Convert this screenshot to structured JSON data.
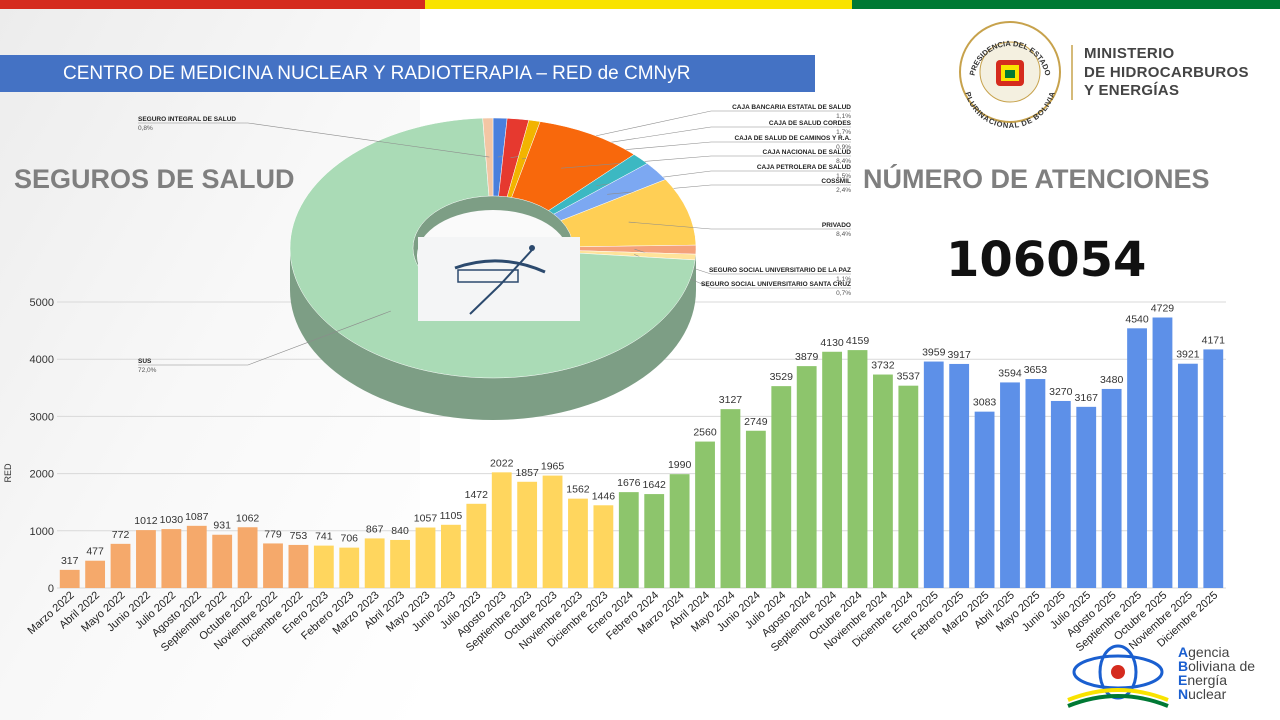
{
  "header": {
    "banner": "CENTRO DE MEDICINA NUCLEAR Y RADIOTERAPIA – RED de CMNyR",
    "left_heading": "SEGUROS  DE  SALUD",
    "right_heading": "NÚMERO DE ATENCIONES",
    "total": 106054
  },
  "logos": {
    "seal_top": "PRESIDENCIA DEL ESTADO",
    "seal_bottom": "PLURINACIONAL DE BOLIVIA",
    "ministry": [
      "MINISTERIO",
      "DE HIDROCARBUROS",
      "Y ENERGÍAS"
    ],
    "agency": [
      "Agencia",
      "Boliviana de",
      "Energía",
      "Nuclear"
    ]
  },
  "chart_data": [
    {
      "type": "bar",
      "y_label": "RED",
      "categories": [
        "Marzo 2022",
        "Abril 2022",
        "Mayo 2022",
        "Junio 2022",
        "Julio 2022",
        "Agosto 2022",
        "Septiembre 2022",
        "Octubre 2022",
        "Noviembre 2022",
        "Diciembre 2022",
        "Enero 2023",
        "Febrero 2023",
        "Marzo 2023",
        "Abril 2023",
        "Mayo 2023",
        "Junio 2023",
        "Julio 2023",
        "Agosto 2023",
        "Septiembre 2023",
        "Octubre 2023",
        "Noviembre 2023",
        "Diciembre 2023",
        "Enero 2024",
        "Febrero 2024",
        "Marzo 2024",
        "Abril 2024",
        "Mayo 2024",
        "Junio 2024",
        "Julio 2024",
        "Agosto 2024",
        "Septiembre 2024",
        "Octubre 2024",
        "Noviembre 2024",
        "Diciembre 2024",
        "Enero 2025",
        "Febrero 2025",
        "Marzo 2025",
        "Abril 2025",
        "Mayo 2025",
        "Junio 2025",
        "Julio 2025",
        "Agosto 2025",
        "Septiembre 2025",
        "Octubre 2025",
        "Noviembre 2025",
        "Diciembre 2025"
      ],
      "values": [
        317,
        477,
        772,
        1012,
        1030,
        1087,
        931,
        1062,
        779,
        753,
        741,
        706,
        867,
        840,
        1057,
        1105,
        1472,
        2022,
        1857,
        1965,
        1562,
        1446,
        1676,
        1642,
        1990,
        2560,
        3127,
        2749,
        3529,
        3879,
        4130,
        4159,
        3732,
        3537,
        3959,
        3917,
        3083,
        3594,
        3653,
        3270,
        3167,
        3480,
        4540,
        4729,
        3921,
        4171
      ],
      "colors": [
        "#f5a96b",
        "#f5a96b",
        "#f5a96b",
        "#f5a96b",
        "#f5a96b",
        "#f5a96b",
        "#f5a96b",
        "#f5a96b",
        "#f5a96b",
        "#f5a96b",
        "#ffd65e",
        "#ffd65e",
        "#ffd65e",
        "#ffd65e",
        "#ffd65e",
        "#ffd65e",
        "#ffd65e",
        "#ffd65e",
        "#ffd65e",
        "#ffd65e",
        "#ffd65e",
        "#ffd65e",
        "#8dc56c",
        "#8dc56c",
        "#8dc56c",
        "#8dc56c",
        "#8dc56c",
        "#8dc56c",
        "#8dc56c",
        "#8dc56c",
        "#8dc56c",
        "#8dc56c",
        "#8dc56c",
        "#8dc56c",
        "#5d90e8",
        "#5d90e8",
        "#5d90e8",
        "#5d90e8",
        "#5d90e8",
        "#5d90e8",
        "#5d90e8",
        "#5d90e8",
        "#5d90e8",
        "#5d90e8",
        "#5d90e8",
        "#5d90e8"
      ],
      "ylim": [
        0,
        5000
      ],
      "yticks": [
        0,
        1000,
        2000,
        3000,
        4000,
        5000
      ],
      "grid": true
    },
    {
      "type": "donut",
      "categories": [
        "CAJA BANCARIA ESTATAL DE SALUD",
        "CAJA DE SALUD CORDES",
        "CAJA DE SALUD DE CAMINOS Y R.A.",
        "CAJA NACIONAL DE SALUD",
        "CAJA PETROLERA DE SALUD",
        "COSSMIL",
        "PRIVADO",
        "SEGURO SOCIAL UNIVERSITARIO DE LA PAZ",
        "SEGURO SOCIAL UNIVERSITARIO SANTA CRUZ",
        "SUS",
        "SEGURO INTEGRAL DE SALUD"
      ],
      "values": [
        1.1,
        1.7,
        0.9,
        8.4,
        1.5,
        2.4,
        8.4,
        1.1,
        0.7,
        72.0,
        0.8
      ],
      "value_labels": [
        "1,1%",
        "1,7%",
        "0,9%",
        "8,4%",
        "1,5%",
        "2,4%",
        "8,4%",
        "1,1%",
        "0,7%",
        "72,0%",
        "0,8%"
      ],
      "colors": [
        "#4a7fdc",
        "#e6392f",
        "#f2b400",
        "#f8680c",
        "#3cb8c2",
        "#7ca8f2",
        "#ffcf55",
        "#f4a27a",
        "#ffe39a",
        "#aadbb6",
        "#f3c6a4"
      ]
    }
  ]
}
